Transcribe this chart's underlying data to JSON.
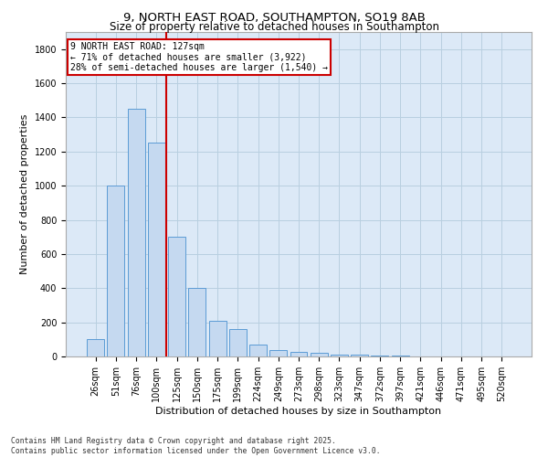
{
  "title_line1": "9, NORTH EAST ROAD, SOUTHAMPTON, SO19 8AB",
  "title_line2": "Size of property relative to detached houses in Southampton",
  "xlabel": "Distribution of detached houses by size in Southampton",
  "ylabel": "Number of detached properties",
  "categories": [
    "26sqm",
    "51sqm",
    "76sqm",
    "100sqm",
    "125sqm",
    "150sqm",
    "175sqm",
    "199sqm",
    "224sqm",
    "249sqm",
    "273sqm",
    "298sqm",
    "323sqm",
    "347sqm",
    "372sqm",
    "397sqm",
    "421sqm",
    "446sqm",
    "471sqm",
    "495sqm",
    "520sqm"
  ],
  "values": [
    100,
    1000,
    1450,
    1250,
    700,
    400,
    210,
    160,
    70,
    40,
    25,
    20,
    10,
    10,
    5,
    5,
    0,
    0,
    0,
    0,
    0
  ],
  "bar_color": "#c5d9f0",
  "bar_edge_color": "#5b9bd5",
  "vline_color": "#cc0000",
  "annotation_text": "9 NORTH EAST ROAD: 127sqm\n← 71% of detached houses are smaller (3,922)\n28% of semi-detached houses are larger (1,540) →",
  "annotation_box_color": "#cc0000",
  "ylim": [
    0,
    1900
  ],
  "yticks": [
    0,
    200,
    400,
    600,
    800,
    1000,
    1200,
    1400,
    1600,
    1800
  ],
  "grid_color": "#b8cfe0",
  "background_color": "#dce9f7",
  "footer_text": "Contains HM Land Registry data © Crown copyright and database right 2025.\nContains public sector information licensed under the Open Government Licence v3.0.",
  "title_fontsize": 9.5,
  "subtitle_fontsize": 8.5,
  "axis_label_fontsize": 8,
  "tick_fontsize": 7,
  "annotation_fontsize": 7,
  "bar_width": 0.85
}
